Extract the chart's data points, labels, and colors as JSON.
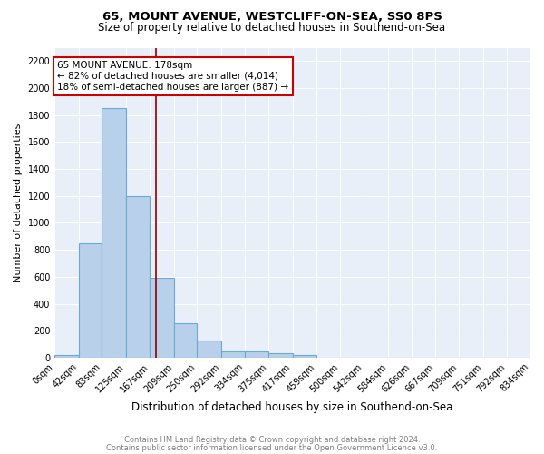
{
  "title1": "65, MOUNT AVENUE, WESTCLIFF-ON-SEA, SS0 8PS",
  "title2": "Size of property relative to detached houses in Southend-on-Sea",
  "xlabel": "Distribution of detached houses by size in Southend-on-Sea",
  "ylabel_full": "Number of detached properties",
  "bin_labels": [
    "0sqm",
    "42sqm",
    "83sqm",
    "125sqm",
    "167sqm",
    "209sqm",
    "250sqm",
    "292sqm",
    "334sqm",
    "375sqm",
    "417sqm",
    "459sqm",
    "500sqm",
    "542sqm",
    "584sqm",
    "626sqm",
    "667sqm",
    "709sqm",
    "751sqm",
    "792sqm",
    "834sqm"
  ],
  "bin_edges": [
    0,
    42,
    83,
    125,
    167,
    209,
    250,
    292,
    334,
    375,
    417,
    459,
    500,
    542,
    584,
    626,
    667,
    709,
    751,
    792,
    834
  ],
  "bar_heights": [
    20,
    845,
    1850,
    1200,
    595,
    255,
    130,
    45,
    45,
    30,
    20,
    0,
    0,
    0,
    0,
    0,
    0,
    0,
    0,
    0
  ],
  "bar_color": "#b8d0ea",
  "bar_edge_color": "#6aaad4",
  "property_size": 178,
  "property_line_color": "#8b0000",
  "annotation_line1": "65 MOUNT AVENUE: 178sqm",
  "annotation_line2": "← 82% of detached houses are smaller (4,014)",
  "annotation_line3": "18% of semi-detached houses are larger (887) →",
  "annotation_box_color": "white",
  "annotation_box_edge_color": "#cc0000",
  "ylim": [
    0,
    2300
  ],
  "yticks": [
    0,
    200,
    400,
    600,
    800,
    1000,
    1200,
    1400,
    1600,
    1800,
    2000,
    2200
  ],
  "background_color": "#e8eff8",
  "grid_color": "white",
  "footer1": "Contains HM Land Registry data © Crown copyright and database right 2024.",
  "footer2": "Contains public sector information licensed under the Open Government Licence v3.0.",
  "title1_fontsize": 9.5,
  "title2_fontsize": 8.5,
  "xlabel_fontsize": 8.5,
  "ylabel_fontsize": 8,
  "tick_fontsize": 7,
  "annotation_fontsize": 7.5,
  "footer_fontsize": 6
}
